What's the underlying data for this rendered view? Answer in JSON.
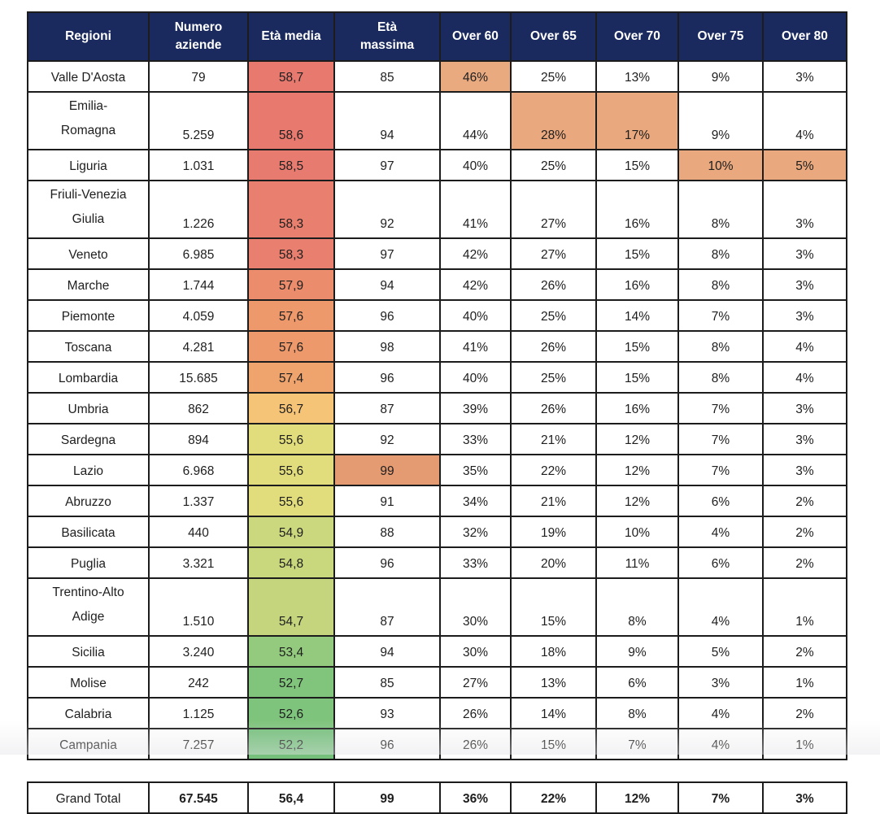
{
  "styles": {
    "header_bg": "#1A2A5E",
    "header_text": "#FFFFFF",
    "border_color": "#1C1C1C",
    "body_text": "#1E1E1E",
    "heat_scale_red": "#E8796F",
    "heat_scale_yellow": "#E2DD7C",
    "heat_scale_green": "#75C07B",
    "highlight_orange": "#E9AA80"
  },
  "chart_data": {
    "type": "table",
    "columns": [
      {
        "label": "Regioni",
        "lines": [
          "Regioni"
        ]
      },
      {
        "label": "Numero aziende",
        "lines": [
          "Numero",
          "aziende"
        ]
      },
      {
        "label": "Età media",
        "lines": [
          "Età media"
        ]
      },
      {
        "label": "Età massima",
        "lines": [
          "Età",
          "massima"
        ]
      },
      {
        "label": "Over 60",
        "lines": [
          "Over 60"
        ]
      },
      {
        "label": "Over 65",
        "lines": [
          "Over 65"
        ]
      },
      {
        "label": "Over 70",
        "lines": [
          "Over 70"
        ]
      },
      {
        "label": "Over 75",
        "lines": [
          "Over 75"
        ]
      },
      {
        "label": "Over 80",
        "lines": [
          "Over 80"
        ]
      }
    ],
    "rows": [
      {
        "tall": false,
        "region_lines": null,
        "cells": [
          "Valle D'Aosta",
          "79",
          "58,7",
          "85",
          "46%",
          "25%",
          "13%",
          "9%",
          "3%"
        ],
        "cell_bg": [
          null,
          null,
          "#E8796F",
          null,
          "#E9AA80",
          null,
          null,
          null,
          null
        ]
      },
      {
        "tall": true,
        "region_lines": [
          "Emilia-",
          "Romagna"
        ],
        "cells": [
          "Emilia-Romagna",
          "5.259",
          "58,6",
          "94",
          "44%",
          "28%",
          "17%",
          "9%",
          "4%"
        ],
        "cell_bg": [
          null,
          null,
          "#E8796F",
          null,
          null,
          "#E9A87D",
          "#E9A87D",
          null,
          null
        ]
      },
      {
        "tall": false,
        "region_lines": null,
        "cells": [
          "Liguria",
          "1.031",
          "58,5",
          "97",
          "40%",
          "25%",
          "15%",
          "10%",
          "5%"
        ],
        "cell_bg": [
          null,
          null,
          "#E87B6F",
          null,
          null,
          null,
          null,
          "#E9A87D",
          "#E9A87D"
        ]
      },
      {
        "tall": true,
        "region_lines": [
          "Friuli-Venezia",
          "Giulia"
        ],
        "cells": [
          "Friuli-Venezia Giulia",
          "1.226",
          "58,3",
          "92",
          "41%",
          "27%",
          "16%",
          "8%",
          "3%"
        ],
        "cell_bg": [
          null,
          null,
          "#E97F6E",
          null,
          null,
          null,
          null,
          null,
          null
        ]
      },
      {
        "tall": false,
        "region_lines": null,
        "cells": [
          "Veneto",
          "6.985",
          "58,3",
          "97",
          "42%",
          "27%",
          "15%",
          "8%",
          "3%"
        ],
        "cell_bg": [
          null,
          null,
          "#E97F6E",
          null,
          null,
          null,
          null,
          null,
          null
        ]
      },
      {
        "tall": false,
        "region_lines": null,
        "cells": [
          "Marche",
          "1.744",
          "57,9",
          "94",
          "42%",
          "26%",
          "16%",
          "8%",
          "3%"
        ],
        "cell_bg": [
          null,
          null,
          "#EB8D6D",
          null,
          null,
          null,
          null,
          null,
          null
        ]
      },
      {
        "tall": false,
        "region_lines": null,
        "cells": [
          "Piemonte",
          "4.059",
          "57,6",
          "96",
          "40%",
          "25%",
          "14%",
          "7%",
          "3%"
        ],
        "cell_bg": [
          null,
          null,
          "#ED996C",
          null,
          null,
          null,
          null,
          null,
          null
        ]
      },
      {
        "tall": false,
        "region_lines": null,
        "cells": [
          "Toscana",
          "4.281",
          "57,6",
          "98",
          "41%",
          "26%",
          "15%",
          "8%",
          "4%"
        ],
        "cell_bg": [
          null,
          null,
          "#ED996C",
          null,
          null,
          null,
          null,
          null,
          null
        ]
      },
      {
        "tall": false,
        "region_lines": null,
        "cells": [
          "Lombardia",
          "15.685",
          "57,4",
          "96",
          "40%",
          "25%",
          "15%",
          "8%",
          "4%"
        ],
        "cell_bg": [
          null,
          null,
          "#EFA36D",
          null,
          null,
          null,
          null,
          null,
          null
        ]
      },
      {
        "tall": false,
        "region_lines": null,
        "cells": [
          "Umbria",
          "862",
          "56,7",
          "87",
          "39%",
          "26%",
          "16%",
          "7%",
          "3%"
        ],
        "cell_bg": [
          null,
          null,
          "#F5C477",
          null,
          null,
          null,
          null,
          null,
          null
        ]
      },
      {
        "tall": false,
        "region_lines": null,
        "cells": [
          "Sardegna",
          "894",
          "55,6",
          "92",
          "33%",
          "21%",
          "12%",
          "7%",
          "3%"
        ],
        "cell_bg": [
          null,
          null,
          "#E2DD7C",
          null,
          null,
          null,
          null,
          null,
          null
        ]
      },
      {
        "tall": false,
        "region_lines": null,
        "cells": [
          "Lazio",
          "6.968",
          "55,6",
          "99",
          "35%",
          "22%",
          "12%",
          "7%",
          "3%"
        ],
        "cell_bg": [
          null,
          null,
          "#E2DD7C",
          "#E59B72",
          null,
          null,
          null,
          null,
          null
        ]
      },
      {
        "tall": false,
        "region_lines": null,
        "cells": [
          "Abruzzo",
          "1.337",
          "55,6",
          "91",
          "34%",
          "21%",
          "12%",
          "6%",
          "2%"
        ],
        "cell_bg": [
          null,
          null,
          "#E2DD7C",
          null,
          null,
          null,
          null,
          null,
          null
        ]
      },
      {
        "tall": false,
        "region_lines": null,
        "cells": [
          "Basilicata",
          "440",
          "54,9",
          "88",
          "32%",
          "19%",
          "10%",
          "4%",
          "2%"
        ],
        "cell_bg": [
          null,
          null,
          "#CCD87D",
          null,
          null,
          null,
          null,
          null,
          null
        ]
      },
      {
        "tall": false,
        "region_lines": null,
        "cells": [
          "Puglia",
          "3.321",
          "54,8",
          "96",
          "33%",
          "20%",
          "11%",
          "6%",
          "2%"
        ],
        "cell_bg": [
          null,
          null,
          "#C9D77D",
          null,
          null,
          null,
          null,
          null,
          null
        ]
      },
      {
        "tall": true,
        "region_lines": [
          "Trentino-Alto",
          "Adige"
        ],
        "cells": [
          "Trentino-Alto Adige",
          "1.510",
          "54,7",
          "87",
          "30%",
          "15%",
          "8%",
          "4%",
          "1%"
        ],
        "cell_bg": [
          null,
          null,
          "#C5D57E",
          null,
          null,
          null,
          null,
          null,
          null
        ]
      },
      {
        "tall": false,
        "region_lines": null,
        "cells": [
          "Sicilia",
          "3.240",
          "53,4",
          "94",
          "30%",
          "18%",
          "9%",
          "5%",
          "2%"
        ],
        "cell_bg": [
          null,
          null,
          "#93CA7D",
          null,
          null,
          null,
          null,
          null,
          null
        ]
      },
      {
        "tall": false,
        "region_lines": null,
        "cells": [
          "Molise",
          "242",
          "52,7",
          "85",
          "27%",
          "13%",
          "6%",
          "3%",
          "1%"
        ],
        "cell_bg": [
          null,
          null,
          "#81C57C",
          null,
          null,
          null,
          null,
          null,
          null
        ]
      },
      {
        "tall": false,
        "region_lines": null,
        "cells": [
          "Calabria",
          "1.125",
          "52,6",
          "93",
          "26%",
          "14%",
          "8%",
          "4%",
          "2%"
        ],
        "cell_bg": [
          null,
          null,
          "#7FC47C",
          null,
          null,
          null,
          null,
          null,
          null
        ]
      },
      {
        "tall": false,
        "region_lines": null,
        "cells": [
          "Campania",
          "7.257",
          "52,2",
          "96",
          "26%",
          "15%",
          "7%",
          "4%",
          "1%"
        ],
        "cell_bg": [
          null,
          null,
          "#75C07B",
          null,
          null,
          null,
          null,
          null,
          null
        ]
      }
    ],
    "grand_total": {
      "cells": [
        "Grand Total",
        "67.545",
        "56,4",
        "99",
        "36%",
        "22%",
        "12%",
        "7%",
        "3%"
      ]
    }
  }
}
